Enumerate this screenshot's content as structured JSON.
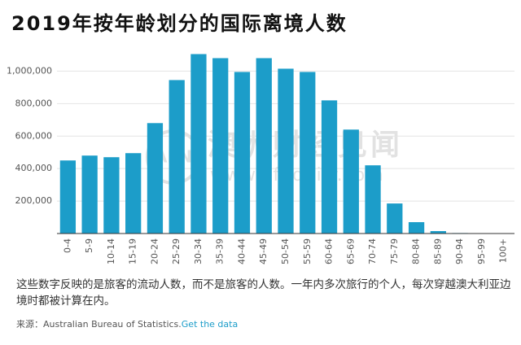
{
  "chart_data": {
    "type": "bar",
    "title": "2019年按年龄划分的国际离境人数",
    "categories": [
      "0-4",
      "5-9",
      "10-14",
      "15-19",
      "20-24",
      "25-29",
      "30-34",
      "35-39",
      "40-44",
      "45-49",
      "50-54",
      "55-59",
      "60-64",
      "65-69",
      "70-74",
      "75-79",
      "80-84",
      "85-89",
      "90-94",
      "95-99",
      "100+"
    ],
    "values": [
      450000,
      480000,
      470000,
      495000,
      680000,
      945000,
      1105000,
      1080000,
      995000,
      1080000,
      1015000,
      995000,
      820000,
      640000,
      420000,
      185000,
      70000,
      15000,
      3000,
      1000,
      300
    ],
    "color": "#1c9dc9",
    "ylim": [
      0,
      1150000
    ],
    "yticks": [
      {
        "value": 200000,
        "label": "200,000"
      },
      {
        "value": 400000,
        "label": "400,000"
      },
      {
        "value": 600000,
        "label": "600,000"
      },
      {
        "value": 800000,
        "label": "800,000"
      },
      {
        "value": 1000000,
        "label": "1,000,000"
      }
    ],
    "grid": true,
    "annotations": {
      "watermark_logo": "AFN",
      "watermark_name": "澳洲财经见闻",
      "watermark_url": "www.afndaily.com"
    },
    "note": "这些数字反映的是旅客的流动人数，而不是旅客的人数。一年内多次旅行的个人，每次穿越澳大利亚边境时都被计算在内。",
    "source": "来源：Australian Bureau of Statistics.",
    "source_link": "Get the data"
  }
}
